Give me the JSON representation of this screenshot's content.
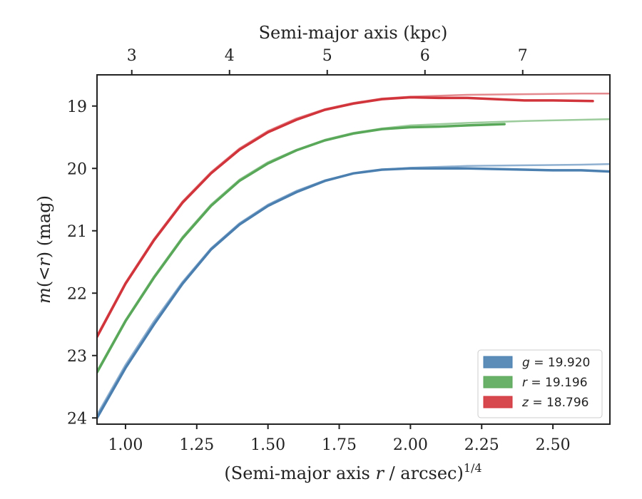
{
  "chart_data": {
    "type": "line",
    "xlabel_pre": "(Semi-major axis ",
    "xlabel_var": "r",
    "xlabel_post": " / arcsec)",
    "xlabel_exp": "1/4",
    "ylabel_var": "m",
    "ylabel_mid": "(<",
    "ylabel_var2": "r",
    "ylabel_post": ") (mag)",
    "top_xlabel": "Semi-major axis (kpc)",
    "xlim": [
      0.9,
      2.7
    ],
    "ylim": [
      24.1,
      18.5
    ],
    "y_inverted": true,
    "x_ticks": [
      1.0,
      1.25,
      1.5,
      1.75,
      2.0,
      2.25,
      2.5
    ],
    "x_tick_labels": [
      "1.00",
      "1.25",
      "1.50",
      "1.75",
      "2.00",
      "2.25",
      "2.50"
    ],
    "y_ticks": [
      19,
      20,
      21,
      22,
      23,
      24
    ],
    "y_tick_labels": [
      "19",
      "20",
      "21",
      "22",
      "23",
      "24"
    ],
    "top_ticks": [
      3,
      4,
      5,
      6,
      7
    ],
    "top_tick_labels": [
      "3",
      "4",
      "5",
      "6",
      "7"
    ],
    "top_tick_positions_x": [
      1.022,
      1.365,
      1.708,
      2.051,
      2.394
    ],
    "legend_position": "lower-right",
    "grid": false,
    "series": [
      {
        "name_var": "g",
        "name_val": " = 19.920",
        "color": "#4a7fb0",
        "model_color": "#8fb0d0",
        "x": [
          0.9,
          1.0,
          1.1,
          1.2,
          1.3,
          1.4,
          1.5,
          1.6,
          1.7,
          1.8,
          1.9,
          2.0,
          2.1,
          2.2,
          2.3,
          2.4,
          2.5,
          2.6,
          2.7
        ],
        "y": [
          24.0,
          23.2,
          22.5,
          21.85,
          21.3,
          20.9,
          20.6,
          20.38,
          20.2,
          20.08,
          20.02,
          20.0,
          20.0,
          20.0,
          20.01,
          20.02,
          20.03,
          20.03,
          20.05
        ],
        "model_x": [
          0.9,
          1.0,
          1.1,
          1.2,
          1.3,
          1.4,
          1.5,
          1.6,
          1.7,
          1.8,
          1.9,
          2.0,
          2.2,
          2.4,
          2.6,
          2.7
        ],
        "model_y": [
          23.95,
          23.15,
          22.45,
          21.82,
          21.28,
          20.88,
          20.58,
          20.36,
          20.19,
          20.08,
          20.02,
          19.99,
          19.96,
          19.95,
          19.94,
          19.93
        ]
      },
      {
        "name_var": "r",
        "name_val": " = 19.196",
        "color": "#59a759",
        "model_color": "#9ccb9c",
        "x": [
          0.9,
          1.0,
          1.1,
          1.2,
          1.3,
          1.4,
          1.5,
          1.6,
          1.7,
          1.8,
          1.9,
          2.0,
          2.1,
          2.2,
          2.33
        ],
        "y": [
          23.27,
          22.45,
          21.75,
          21.12,
          20.6,
          20.2,
          19.92,
          19.71,
          19.55,
          19.44,
          19.37,
          19.34,
          19.33,
          19.31,
          19.29
        ],
        "model_x": [
          0.9,
          1.0,
          1.1,
          1.2,
          1.3,
          1.4,
          1.5,
          1.6,
          1.7,
          1.8,
          1.9,
          2.0,
          2.2,
          2.4,
          2.6,
          2.7
        ],
        "model_y": [
          23.25,
          22.43,
          21.73,
          21.1,
          20.58,
          20.18,
          19.9,
          19.7,
          19.54,
          19.43,
          19.36,
          19.31,
          19.27,
          19.24,
          19.22,
          19.21
        ]
      },
      {
        "name_var": "z",
        "name_val": " = 18.796",
        "color": "#d1343a",
        "model_color": "#e48a8e",
        "x": [
          0.9,
          1.0,
          1.1,
          1.2,
          1.3,
          1.4,
          1.5,
          1.6,
          1.7,
          1.8,
          1.9,
          2.0,
          2.1,
          2.2,
          2.3,
          2.4,
          2.5,
          2.64
        ],
        "y": [
          22.7,
          21.85,
          21.15,
          20.55,
          20.08,
          19.7,
          19.42,
          19.22,
          19.06,
          18.96,
          18.89,
          18.86,
          18.87,
          18.87,
          18.89,
          18.91,
          18.91,
          18.92
        ],
        "model_x": [
          0.9,
          1.0,
          1.1,
          1.2,
          1.3,
          1.4,
          1.5,
          1.6,
          1.7,
          1.8,
          1.9,
          2.0,
          2.2,
          2.4,
          2.6,
          2.7
        ],
        "model_y": [
          22.68,
          21.83,
          21.13,
          20.53,
          20.06,
          19.68,
          19.4,
          19.2,
          19.05,
          18.95,
          18.88,
          18.85,
          18.82,
          18.81,
          18.8,
          18.8
        ]
      }
    ]
  }
}
